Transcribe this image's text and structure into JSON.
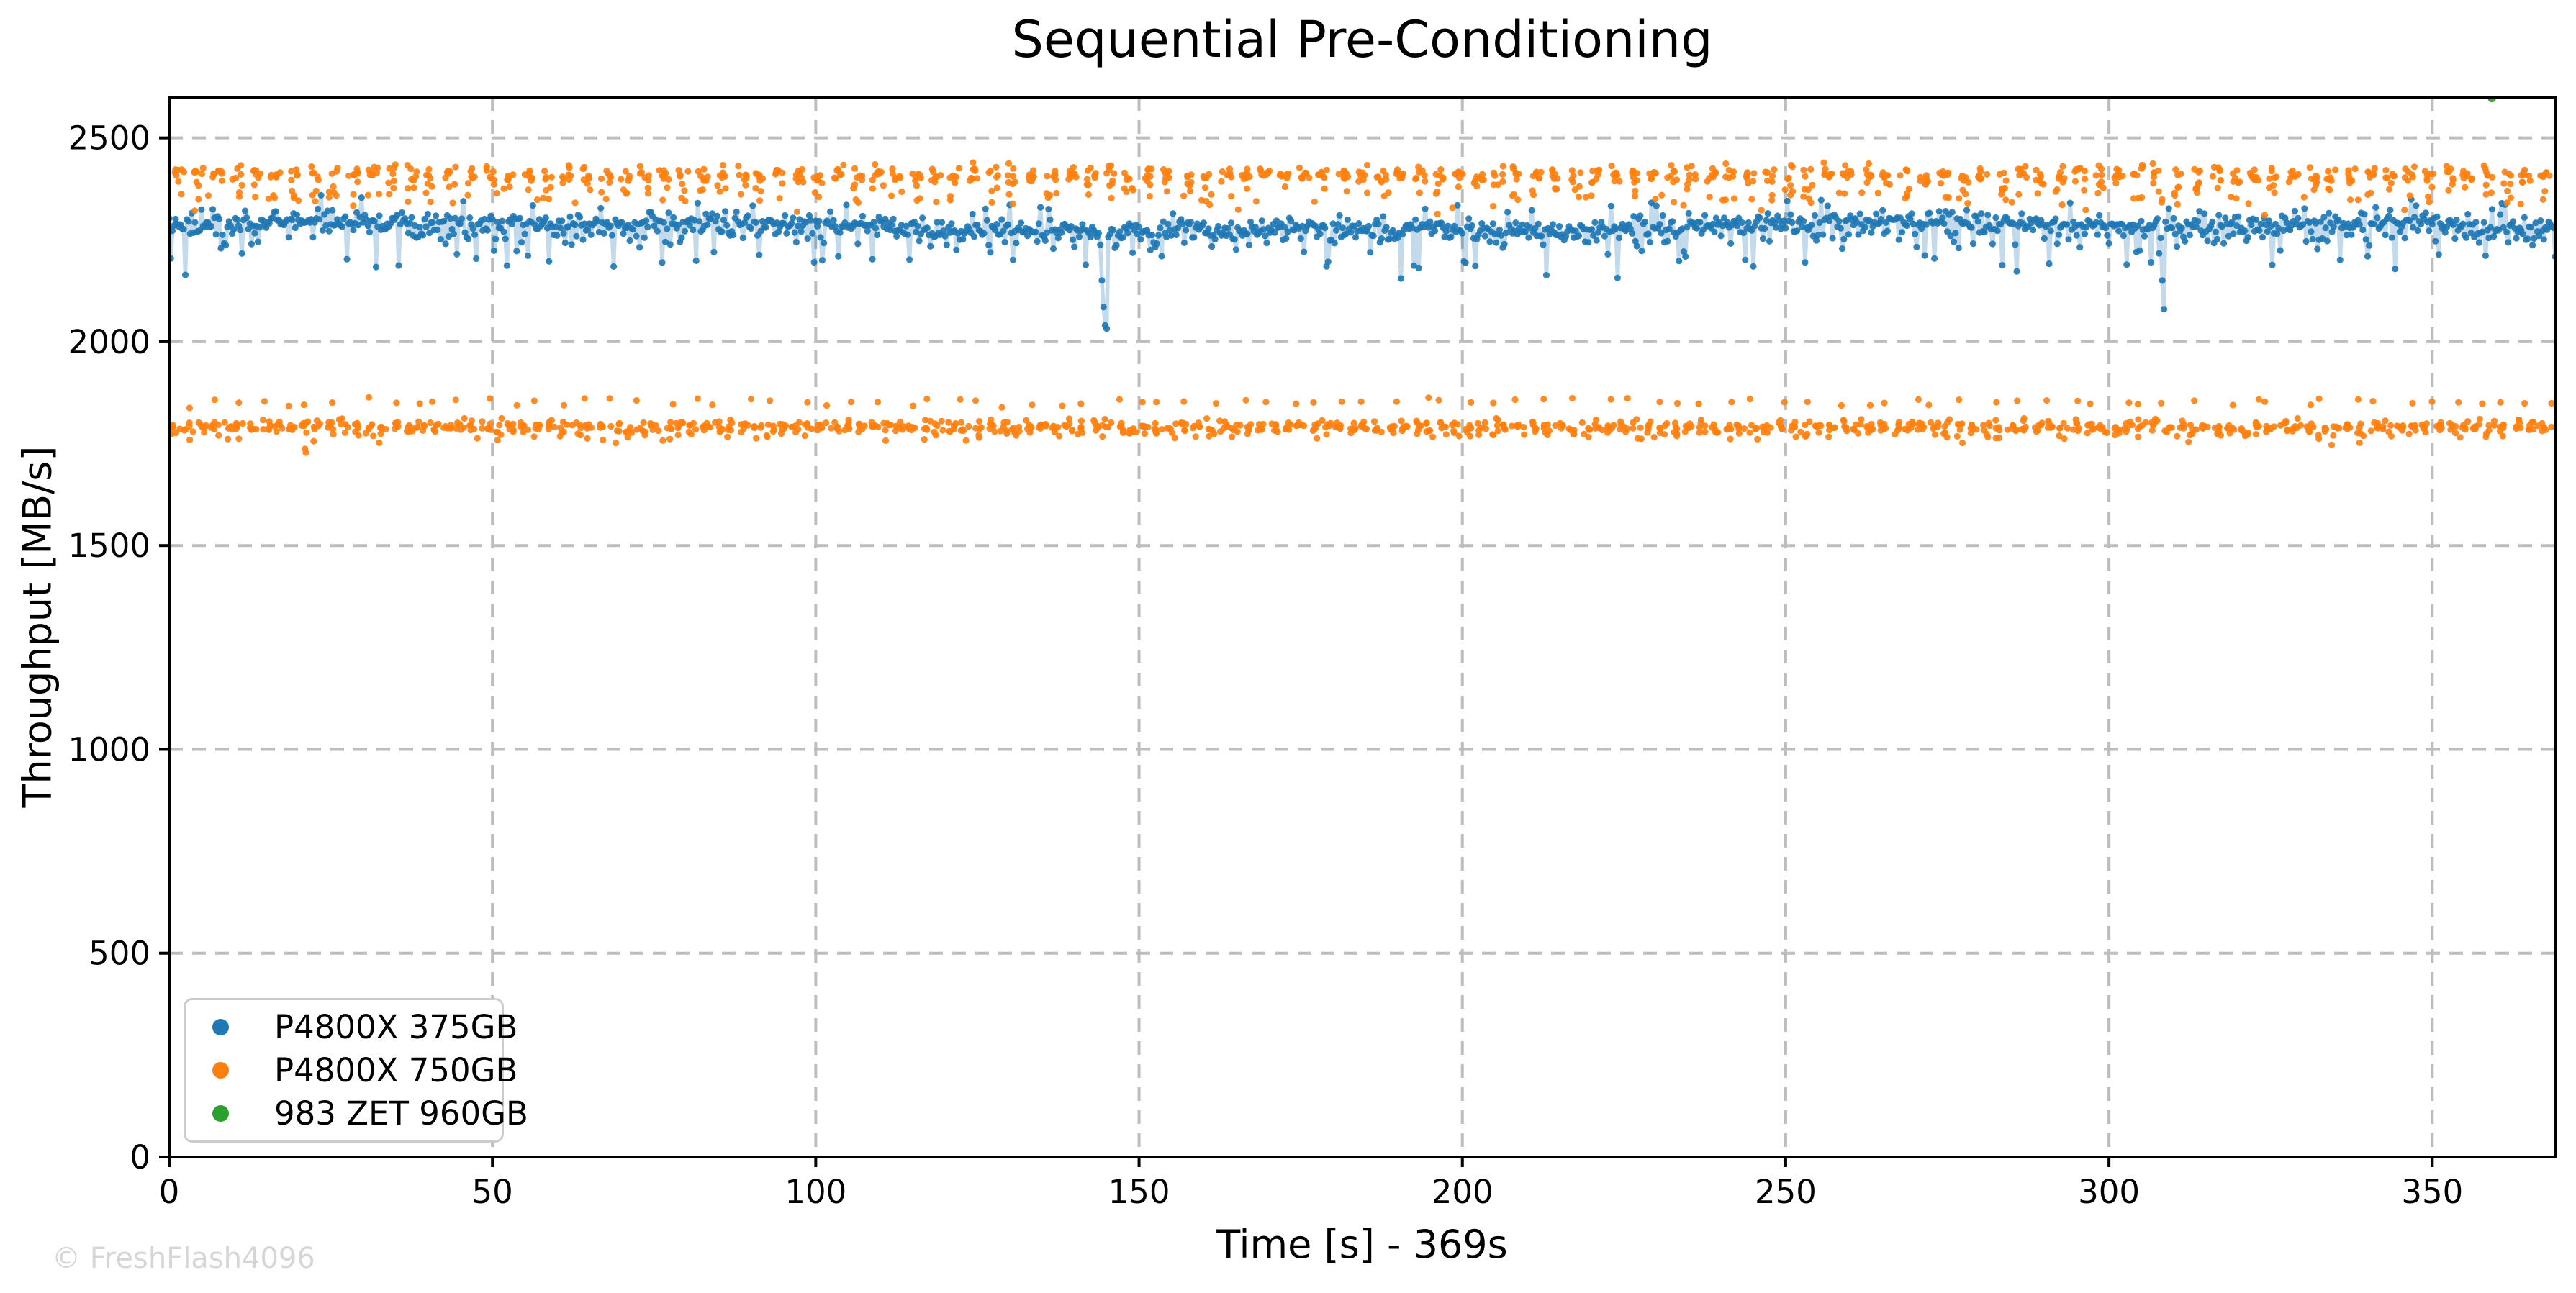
{
  "watermark": "© FreshFlash4096",
  "watermark_color": "#d6d6d6",
  "chart_data": {
    "type": "scatter",
    "title": "Sequential Pre-Conditioning",
    "xlabel": "Time [s] - 369s",
    "ylabel": "Throughput [MB/s]",
    "xlim": [
      0,
      369
    ],
    "ylim": [
      0,
      2600
    ],
    "x_ticks": [
      0,
      50,
      100,
      150,
      200,
      250,
      300,
      350
    ],
    "y_ticks": [
      0,
      500,
      1000,
      1500,
      2000,
      2500
    ],
    "grid": {
      "on": true,
      "style": "dashed",
      "color": "#bdbdbd",
      "dash": [
        19,
        13
      ],
      "width": 4
    },
    "spine_color": "#000000",
    "legend_position": "lower-left",
    "marker_diameter": 9.2,
    "series": [
      {
        "name": "P4800X 375GB",
        "color": "#1f77b4",
        "marker": "circle",
        "render": {
          "kind": "band-with-line",
          "rate_hz": 4,
          "base": 2283,
          "noise": 13,
          "wobble": [
            {
              "amp": 9,
              "period_s": 38
            },
            {
              "amp": 5,
              "period_s": 13
            }
          ],
          "small_tail_p": 0.18,
          "small_tail": [
            12,
            35
          ],
          "down_spike_every_s": 4,
          "down_spike_depth": [
            40,
            115
          ],
          "up_spike_every_s": 9,
          "up_spike_height": [
            30,
            55
          ],
          "line": {
            "opacity": 0.27,
            "width": 5.5
          },
          "dips": [
            {
              "t": 144,
              "values": [
                2238,
                2150,
                2085,
                2040,
                2032
              ]
            },
            {
              "t": 308,
              "values": [
                2255,
                2150,
                2080
              ]
            }
          ]
        }
      },
      {
        "name": "P4800X 750GB",
        "color": "#ff7f0e",
        "marker": "circle",
        "render": {
          "kind": "clustered-bands",
          "bands": [
            {
              "base": 2408,
              "noise": 12,
              "cluster_period_s": 3,
              "points_per_cluster": 8,
              "cluster_width_s": 1.6,
              "low_tail_p": 0.18,
              "low_tail": [
                30,
                55
              ],
              "sparse": {
                "every_s": 6,
                "base": 2347,
                "noise": 14
              }
            },
            {
              "base": 1791,
              "noise": 8,
              "cluster_period_s": 2,
              "points_per_cluster": 6,
              "cluster_width_s": 1.4,
              "low_tail_p": 0.1,
              "low_tail": [
                15,
                25
              ],
              "sparse": {
                "every_s": 4,
                "base": 1853,
                "noise": 6
              }
            }
          ],
          "outliers": [
            {
              "t": 21.0,
              "v": 1737
            },
            {
              "t": 21.15,
              "v": 1728
            }
          ]
        }
      },
      {
        "name": "983 ZET 960GB",
        "color": "#2ca02c",
        "marker": "circle",
        "render": {
          "kind": "outliers-only",
          "outliers": [
            {
              "t": 359.2,
              "v": 2597
            }
          ]
        }
      }
    ]
  }
}
